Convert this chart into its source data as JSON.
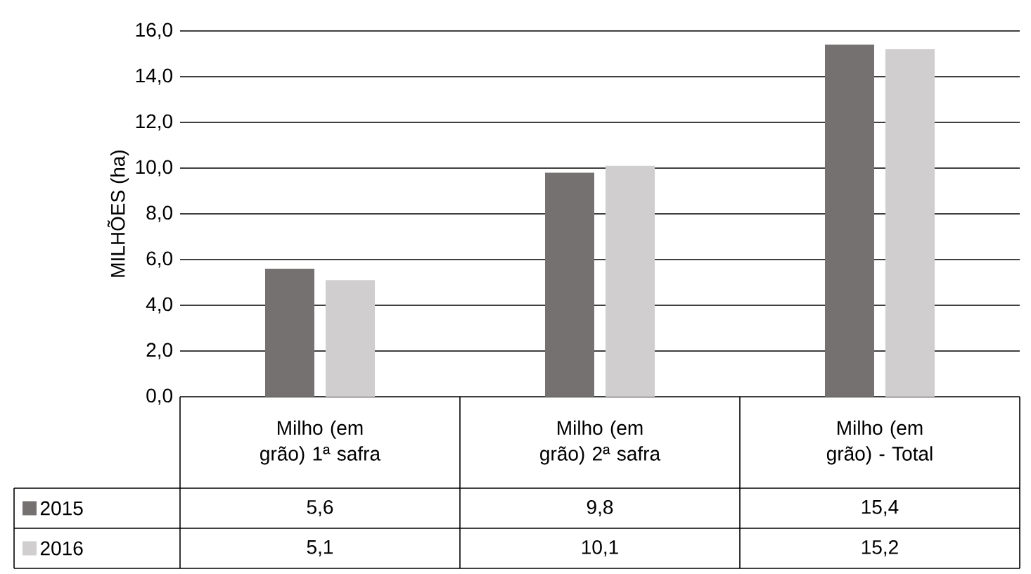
{
  "chart_data": {
    "type": "bar",
    "ylabel": "MILHÕES  (ha)",
    "categories": [
      "Milho (em grão) 1ª safra",
      "Milho (em grão) 2ª safra",
      "Milho (em grão) - Total"
    ],
    "series": [
      {
        "name": "2015",
        "color": "#767171",
        "values": [
          5.6,
          9.8,
          15.4
        ],
        "value_labels": [
          "5,6",
          "9,8",
          "15,4"
        ]
      },
      {
        "name": "2016",
        "color": "#d0cece",
        "values": [
          5.1,
          10.1,
          15.2
        ],
        "value_labels": [
          "5,1",
          "10,1",
          "15,2"
        ]
      }
    ],
    "ylim": [
      0,
      16
    ],
    "yticks": [
      {
        "value": 0,
        "label": "0,0"
      },
      {
        "value": 2,
        "label": "2,0"
      },
      {
        "value": 4,
        "label": "4,0"
      },
      {
        "value": 6,
        "label": "6,0"
      },
      {
        "value": 8,
        "label": "8,0"
      },
      {
        "value": 10,
        "label": "10,0"
      },
      {
        "value": 12,
        "label": "12,0"
      },
      {
        "value": 14,
        "label": "14,0"
      },
      {
        "value": 16,
        "label": "16,0"
      }
    ],
    "grid": "y",
    "legend": "bottom"
  }
}
